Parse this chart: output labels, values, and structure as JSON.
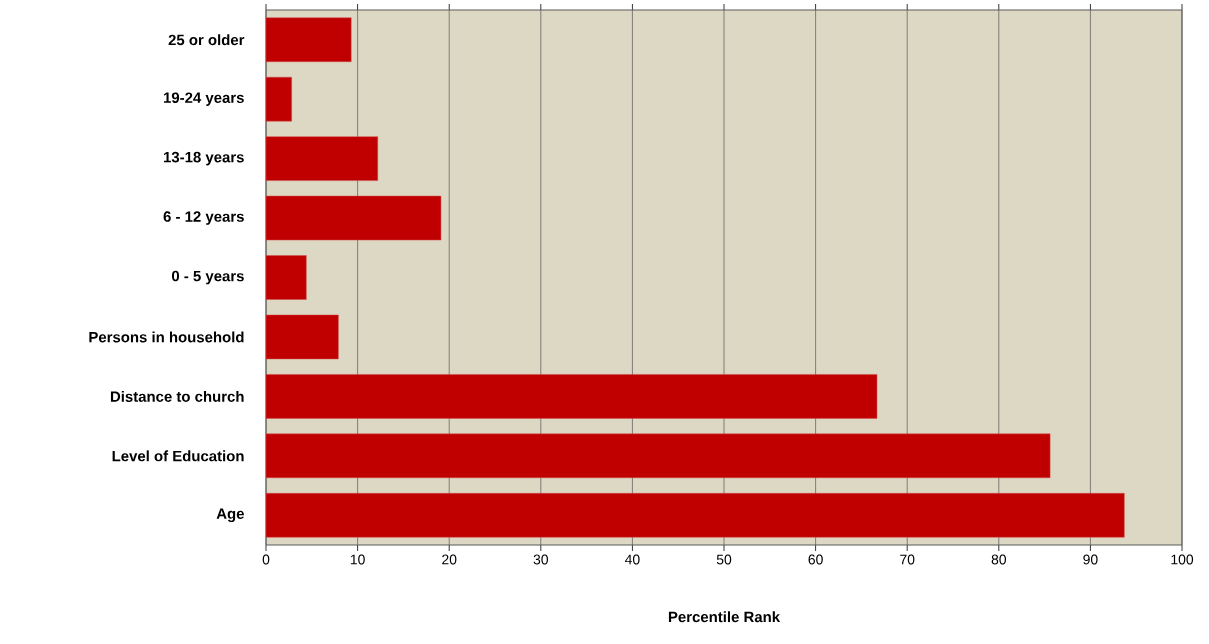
{
  "chart_data": {
    "type": "bar",
    "orientation": "horizontal",
    "xlabel": "Percentile Rank",
    "categories": [
      "25 or older",
      "19-24 years",
      "13-18 years",
      "6 - 12 years",
      "0 - 5 years",
      "Persons in household",
      "Distance to church",
      "Level of Education",
      "Age"
    ],
    "values": [
      9.3,
      2.8,
      12.2,
      19.1,
      4.4,
      7.9,
      66.7,
      85.6,
      93.7
    ],
    "color": "#c00000",
    "xlim": [
      0,
      100
    ],
    "xticks": [
      0,
      10,
      20,
      30,
      40,
      50,
      60,
      70,
      80,
      90,
      100
    ],
    "grid": "x"
  }
}
